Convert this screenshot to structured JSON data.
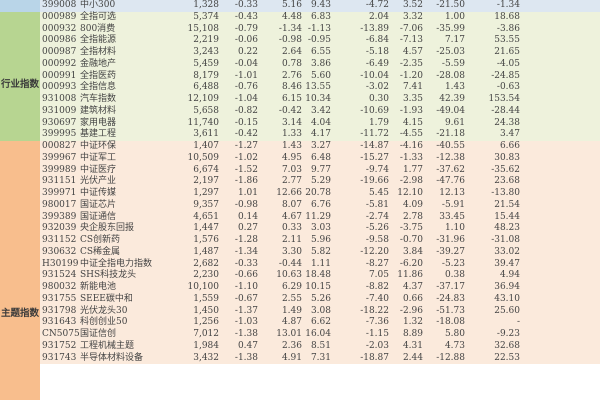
{
  "colors": {
    "top_band": "#b9d5e8",
    "top_row": "#dde7f1",
    "industry_band": "#b7d591",
    "industry_row": "#eef2dc",
    "theme_band": "#f8be8d",
    "theme_row": "#fbeadc"
  },
  "top_rows": [
    [
      "399008",
      "中小300",
      "1,328",
      "-0.33",
      "5.16",
      "9.43",
      "-4.72",
      "3.52",
      "-21.50",
      "-1.34"
    ]
  ],
  "industry": {
    "label": "行业指数",
    "rows": [
      [
        "000989",
        "全指可选",
        "5,374",
        "-0.43",
        "4.48",
        "6.83",
        "2.04",
        "3.32",
        "1.00",
        "18.68"
      ],
      [
        "000932",
        "800消费",
        "15,108",
        "-0.79",
        "-1.34",
        "-1.13",
        "-13.89",
        "-7.06",
        "-35.99",
        "-3.86"
      ],
      [
        "000986",
        "全指能源",
        "2,219",
        "-0.06",
        "-0.98",
        "-0.95",
        "-6.84",
        "-7.13",
        "7.17",
        "53.55"
      ],
      [
        "000987",
        "全指材料",
        "3,243",
        "0.22",
        "2.64",
        "6.55",
        "-5.18",
        "4.57",
        "-25.03",
        "21.65"
      ],
      [
        "000992",
        "金融地产",
        "5,459",
        "-0.04",
        "0.78",
        "3.86",
        "-6.49",
        "-2.35",
        "-5.59",
        "-4.05"
      ],
      [
        "000991",
        "全指医药",
        "8,179",
        "-1.01",
        "2.76",
        "5.60",
        "-10.04",
        "-1.20",
        "-28.08",
        "-24.85"
      ],
      [
        "000993",
        "全指信息",
        "6,488",
        "-0.76",
        "8.46",
        "13.55",
        "-3.02",
        "7.41",
        "1.43",
        "-0.63"
      ],
      [
        "931008",
        "汽车指数",
        "12,109",
        "-1.04",
        "6.15",
        "10.34",
        "0.30",
        "3.35",
        "42.39",
        "153.54"
      ],
      [
        "931009",
        "建筑材料",
        "5,658",
        "-0.82",
        "-0.42",
        "3.42",
        "-10.69",
        "-1.93",
        "-49.04",
        "-28.44"
      ],
      [
        "930697",
        "家用电器",
        "11,740",
        "-0.15",
        "3.14",
        "4.04",
        "1.79",
        "4.15",
        "9.61",
        "24.38"
      ],
      [
        "399995",
        "基建工程",
        "3,611",
        "-0.42",
        "1.33",
        "4.17",
        "-11.72",
        "-4.55",
        "-21.18",
        "3.47"
      ]
    ]
  },
  "theme": {
    "label": "主题指数",
    "rows": [
      [
        "000827",
        "中证环保",
        "1,407",
        "-1.27",
        "1.43",
        "3.27",
        "-14.87",
        "-4.16",
        "-40.55",
        "6.66"
      ],
      [
        "399967",
        "中证军工",
        "10,509",
        "-1.02",
        "4.95",
        "6.48",
        "-15.27",
        "-1.33",
        "-12.38",
        "30.83"
      ],
      [
        "399989",
        "中证医疗",
        "6,674",
        "-1.52",
        "7.03",
        "9.77",
        "-9.74",
        "1.77",
        "-37.62",
        "-35.62"
      ],
      [
        "931151",
        "光伏产业",
        "2,197",
        "-1.86",
        "2.77",
        "5.29",
        "-19.66",
        "-2.98",
        "-47.76",
        "23.68"
      ],
      [
        "399971",
        "中证传媒",
        "1,297",
        "1.01",
        "12.66",
        "20.78",
        "5.45",
        "12.10",
        "12.13",
        "-13.80"
      ],
      [
        "980017",
        "国证芯片",
        "9,357",
        "-0.98",
        "8.07",
        "6.76",
        "-5.81",
        "4.09",
        "-5.91",
        "21.54"
      ],
      [
        "399389",
        "国证通信",
        "4,651",
        "0.14",
        "4.67",
        "11.29",
        "-2.74",
        "2.78",
        "33.45",
        "15.44"
      ],
      [
        "932039",
        "央企股东回报",
        "1,447",
        "0.27",
        "0.33",
        "3.03",
        "-5.26",
        "-3.75",
        "1.10",
        "48.23"
      ],
      [
        "931152",
        "CS创新药",
        "1,576",
        "-1.28",
        "2.11",
        "5.96",
        "-9.58",
        "-0.70",
        "-31.96",
        "-31.08"
      ],
      [
        "930632",
        "CS稀金属",
        "1,487",
        "-1.34",
        "3.30",
        "5.82",
        "-12.20",
        "3.84",
        "-39.27",
        "33.02"
      ],
      [
        "H30199",
        "中证全指电力指数",
        "2,682",
        "-0.33",
        "-0.44",
        "1.11",
        "-8.27",
        "-6.20",
        "-5.23",
        "39.47"
      ],
      [
        "931524",
        "SHS科技龙头",
        "2,230",
        "-0.66",
        "10.63",
        "18.48",
        "7.05",
        "11.86",
        "0.38",
        "4.94"
      ],
      [
        "980032",
        "新能电池",
        "10,100",
        "-1.10",
        "6.29",
        "10.15",
        "-8.82",
        "4.37",
        "-37.17",
        "36.94"
      ],
      [
        "931755",
        "SEEE碳中和",
        "1,559",
        "-0.67",
        "2.55",
        "5.26",
        "-7.40",
        "0.66",
        "-24.83",
        "43.10"
      ],
      [
        "931798",
        "光伏龙头30",
        "1,450",
        "-1.37",
        "1.49",
        "3.08",
        "-18.22",
        "-2.96",
        "-51.73",
        "25.60"
      ],
      [
        "931643",
        "科创创业50",
        "1,256",
        "-1.03",
        "4.87",
        "6.62",
        "-7.36",
        "1.32",
        "-18.08",
        "-"
      ],
      [
        "CN5075",
        "国证信创",
        "7,012",
        "-1.38",
        "13.01",
        "16.04",
        "-1.15",
        "8.89",
        "5.80",
        "-9.23"
      ],
      [
        "931752",
        "工程机械主题",
        "1,984",
        "0.47",
        "2.36",
        "8.51",
        "-2.03",
        "4.31",
        "4.73",
        "32.68"
      ],
      [
        "931743",
        "半导体材料设备",
        "3,432",
        "-1.38",
        "4.91",
        "7.31",
        "-18.87",
        "2.44",
        "-12.88",
        "22.53"
      ]
    ]
  }
}
